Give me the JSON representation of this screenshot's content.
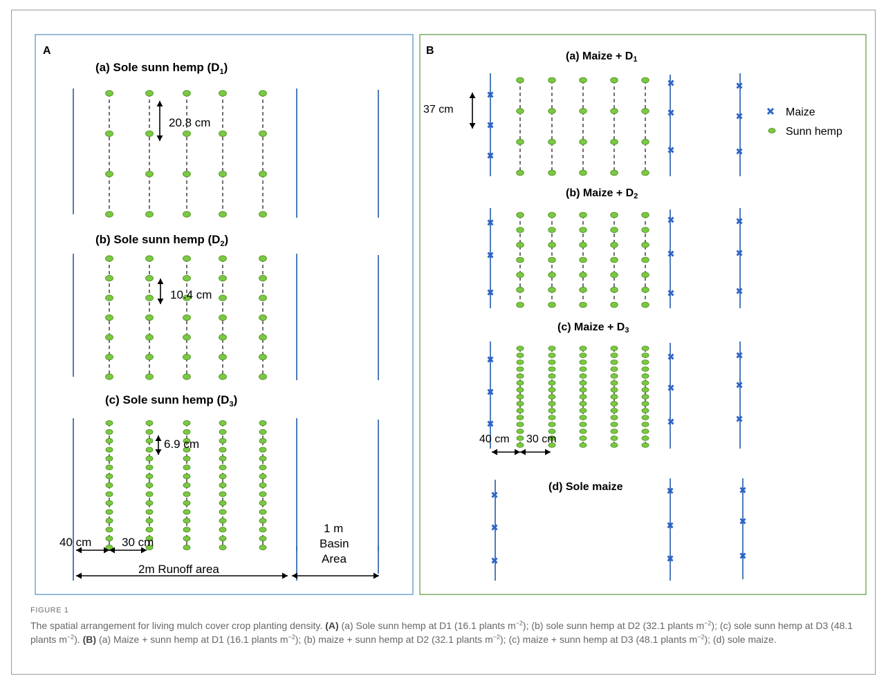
{
  "panels": {
    "A": {
      "label": "A",
      "sections": [
        {
          "title": "(a)  Sole sunn hemp (D",
          "sub": "1",
          "tail": ")",
          "spacing": "20.8 cm"
        },
        {
          "title": "(b)  Sole sunn hemp (D",
          "sub": "2",
          "tail": ")",
          "spacing": "10.4 cm"
        },
        {
          "title": "(c)  Sole sunn hemp (D",
          "sub": "3",
          "tail": ")",
          "spacing": "6.9 cm"
        }
      ],
      "dim_40": "40 cm",
      "dim_30": "30 cm",
      "runoff": "2m Runoff area",
      "basin_1": "1 m",
      "basin_2": "Basin",
      "basin_3": "Area"
    },
    "B": {
      "label": "B",
      "sections": [
        {
          "title": "(a) Maize + D",
          "sub": "1"
        },
        {
          "title": "(b) Maize + D",
          "sub": "2"
        },
        {
          "title": "(c) Maize + D",
          "sub": "3"
        },
        {
          "title": "(d) Sole maize",
          "sub": ""
        }
      ],
      "maize_spacing": "37 cm",
      "dim_40": "40 cm",
      "dim_30": "30 cm"
    }
  },
  "legend": {
    "maize": "Maize",
    "sunn_hemp": "Sunn hemp"
  },
  "colors": {
    "panel_a_border": "#4a90c8",
    "panel_b_border": "#5a9a3a",
    "row_line": "#1f5aa8",
    "plant_green": "#7ac943",
    "plant_outline": "#4a8a1a",
    "maize_blue": "#2e64c8"
  },
  "caption": {
    "label": "FIGURE 1",
    "intro": "The spatial arrangement for living mulch cover crop planting density. ",
    "a_label": "(A)",
    "a_parts": [
      " (a) Sole sunn hemp at D1 (16.1 plants m",
      "); (b) sole sunn hemp at D2 (32.1 plants m",
      "); (c) sole sunn hemp at D3 (48.1 plants m",
      "). "
    ],
    "b_label": "(B)",
    "b_parts": [
      " (a) Maize + sunn hemp at D1 (16.1 plants m",
      "); (b) maize + sunn hemp at D2 (32.1 plants m",
      "); (c) maize + sunn hemp at D3 (48.1 plants m",
      "); (d) sole maize."
    ],
    "exp": "−2"
  }
}
